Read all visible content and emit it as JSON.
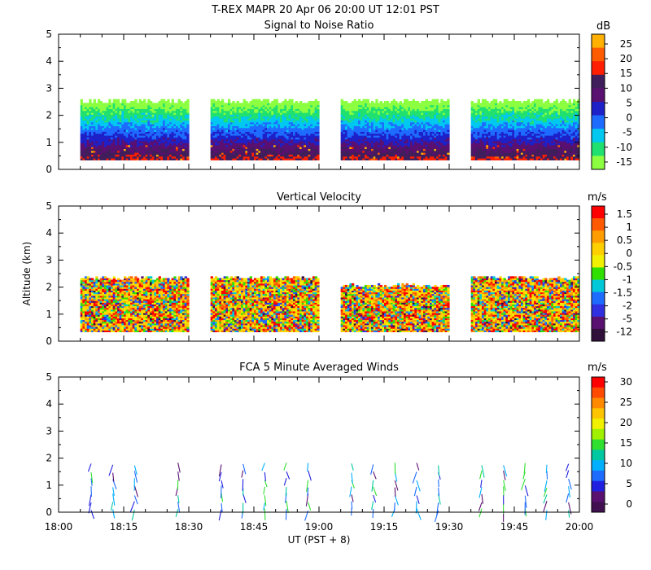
{
  "figure": {
    "title": "T-REX   MAPR 20 Apr 06   20:00 UT   12:01   PST",
    "xlabel": "UT  (PST + 8)",
    "ylabel": "Altitude (km)"
  },
  "chart_data": [
    {
      "type": "heatmap",
      "title": "Signal to Noise Ratio",
      "colorbar_unit": "dB",
      "colorbar_ticks": [
        "25",
        "20",
        "15",
        "10",
        "5",
        "0",
        "-5",
        "-10",
        "-15"
      ],
      "colorbar_colors": [
        "#ffb000",
        "#ff5c00",
        "#ff1f00",
        "#401e5c",
        "#5a1070",
        "#1e20c8",
        "#1e6cff",
        "#00c8f0",
        "#20e070",
        "#8cff40"
      ],
      "x_ticks": [
        "18:00",
        "18:15",
        "18:30",
        "18:45",
        "19:00",
        "19:15",
        "19:30",
        "19:45",
        "20:00"
      ],
      "xlim_minutes": [
        0,
        120
      ],
      "y_ticks": [
        "0",
        "1",
        "2",
        "3",
        "4",
        "5"
      ],
      "ylim": [
        0,
        5
      ],
      "data_blocks_minutes": [
        [
          5,
          30
        ],
        [
          35,
          60
        ],
        [
          65,
          90
        ],
        [
          95,
          120
        ]
      ],
      "range_km": [
        0.35,
        2.6
      ]
    },
    {
      "type": "heatmap",
      "title": "Vertical Velocity",
      "colorbar_unit": "m/s",
      "colorbar_ticks": [
        "1.5",
        "1",
        "0.5",
        "0",
        "-0.5",
        "-1",
        "-1.5",
        "-2",
        "-5",
        "-12"
      ],
      "colorbar_colors": [
        "#ff0000",
        "#ff5a00",
        "#ff9c00",
        "#ffd000",
        "#f0f000",
        "#30e000",
        "#00c8d8",
        "#1e6cff",
        "#3030e0",
        "#5a1070",
        "#30103a"
      ],
      "x_ticks": [
        "18:00",
        "18:15",
        "18:30",
        "18:45",
        "19:00",
        "19:15",
        "19:30",
        "19:45",
        "20:00"
      ],
      "xlim_minutes": [
        0,
        120
      ],
      "y_ticks": [
        "0",
        "1",
        "2",
        "3",
        "4",
        "5"
      ],
      "ylim": [
        0,
        5
      ],
      "data_blocks_minutes": [
        [
          5,
          30
        ],
        [
          35,
          60
        ],
        [
          65,
          90
        ],
        [
          95,
          120
        ]
      ],
      "range_km": [
        0.35,
        2.4
      ]
    },
    {
      "type": "scatter",
      "title": "FCA 5 Minute Averaged Winds",
      "colorbar_unit": "m/s",
      "colorbar_ticks": [
        "30",
        "25",
        "20",
        "15",
        "10",
        "5",
        "0"
      ],
      "colorbar_colors": [
        "#ff0000",
        "#ff4a00",
        "#ff8a00",
        "#ffc400",
        "#f0f000",
        "#a0f000",
        "#30e030",
        "#00c8a0",
        "#00b0ff",
        "#1e6cff",
        "#2020e0",
        "#5a1070",
        "#401050"
      ],
      "x_ticks": [
        "18:00",
        "18:15",
        "18:30",
        "18:45",
        "19:00",
        "19:15",
        "19:30",
        "19:45",
        "20:00"
      ],
      "xlim_minutes": [
        0,
        120
      ],
      "y_ticks": [
        "0",
        "1",
        "2",
        "3",
        "4",
        "5"
      ],
      "ylim": [
        0,
        5
      ],
      "profile_times_minutes": [
        7.5,
        12.5,
        17.5,
        27.5,
        37.5,
        42.5,
        47.5,
        52.5,
        57.5,
        67.5,
        72.5,
        77.5,
        82.5,
        87.5,
        97.5,
        102.5,
        107.5,
        112.5,
        117.5
      ]
    }
  ]
}
